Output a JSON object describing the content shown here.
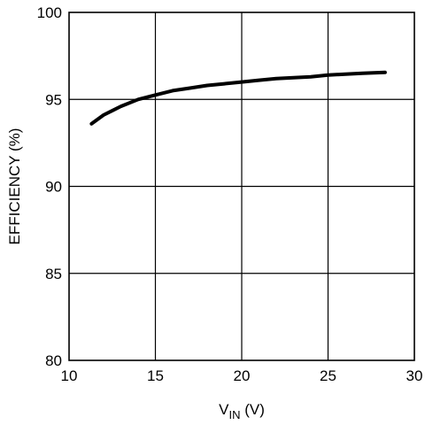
{
  "chart_data": {
    "type": "line",
    "xlabel": {
      "main": "V",
      "sub": "IN",
      "unit": " (V)"
    },
    "ylabel": "EFFICIENCY (%)",
    "xlim": [
      10,
      30
    ],
    "ylim": [
      80,
      100
    ],
    "x_ticks": [
      10,
      15,
      20,
      25,
      30
    ],
    "y_ticks": [
      80,
      85,
      90,
      95,
      100
    ],
    "x_tick_labels": [
      "10",
      "15",
      "20",
      "25",
      "30"
    ],
    "y_tick_labels": [
      "80",
      "85",
      "90",
      "95",
      "100"
    ],
    "grid": true,
    "series": [
      {
        "x": [
          11.3,
          12,
          13,
          14,
          15,
          16,
          17,
          18,
          19,
          20,
          21,
          22,
          23,
          24,
          25,
          26,
          27,
          28.3
        ],
        "y": [
          93.6,
          94.1,
          94.6,
          95.0,
          95.25,
          95.5,
          95.65,
          95.8,
          95.9,
          96.0,
          96.1,
          96.2,
          96.25,
          96.3,
          96.4,
          96.45,
          96.5,
          96.55
        ]
      }
    ]
  }
}
